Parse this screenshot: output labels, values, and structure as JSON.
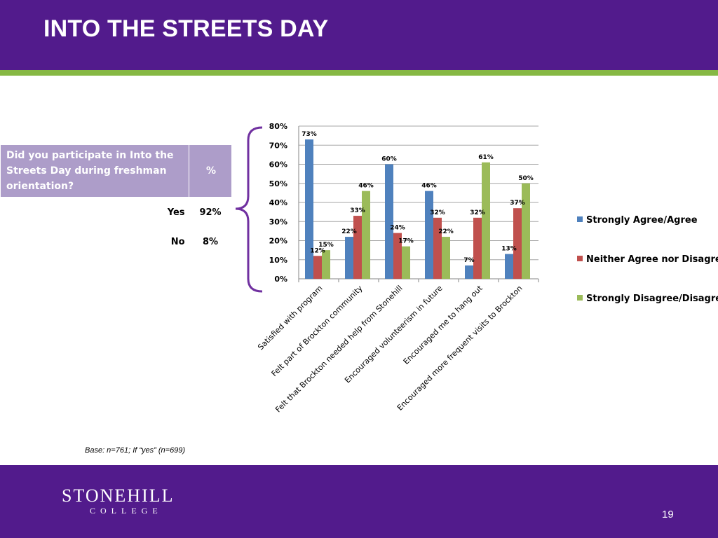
{
  "slide": {
    "title": "INTO THE STREETS DAY",
    "base_note": "Base: n=761; If “yes” (n=699)",
    "page_number": "19",
    "logo": {
      "name": "STONEHILL",
      "sub": "COLLEGE"
    },
    "colors": {
      "header": "#521b8c",
      "accent": "#86b844",
      "table_header": "#ad9dc9",
      "bracket": "#7030a0"
    }
  },
  "table": {
    "question": "Did you participate in Into the Streets Day during freshman orientation?",
    "pct_header": "%",
    "rows": [
      {
        "label": "Yes",
        "value": "92%"
      },
      {
        "label": "No",
        "value": "8%"
      }
    ]
  },
  "chart_data": {
    "type": "bar",
    "categories": [
      "Satisfied with program",
      "Felt part of Brockton community",
      "Felt that Brockton needed help from Stonehill",
      "Encouraged  volunteerism in future",
      "Encouraged me to hang out",
      "Encouraged more frequent visits to Brockton"
    ],
    "series": [
      {
        "name": "Strongly Agree/Agree",
        "color": "#4f81bd",
        "values": [
          73,
          22,
          60,
          46,
          7,
          13
        ]
      },
      {
        "name": "Neither Agree nor Disagree",
        "color": "#c0504d",
        "values": [
          12,
          33,
          24,
          32,
          32,
          37
        ]
      },
      {
        "name": "Strongly Disagree/Disagree",
        "color": "#9bbb59",
        "values": [
          15,
          46,
          17,
          22,
          61,
          50
        ]
      }
    ],
    "ylim": [
      0,
      80
    ],
    "yticks": [
      "0%",
      "10%",
      "20%",
      "30%",
      "40%",
      "50%",
      "60%",
      "70%",
      "80%"
    ],
    "grid": true,
    "legend": "right",
    "value_format": "percent"
  }
}
